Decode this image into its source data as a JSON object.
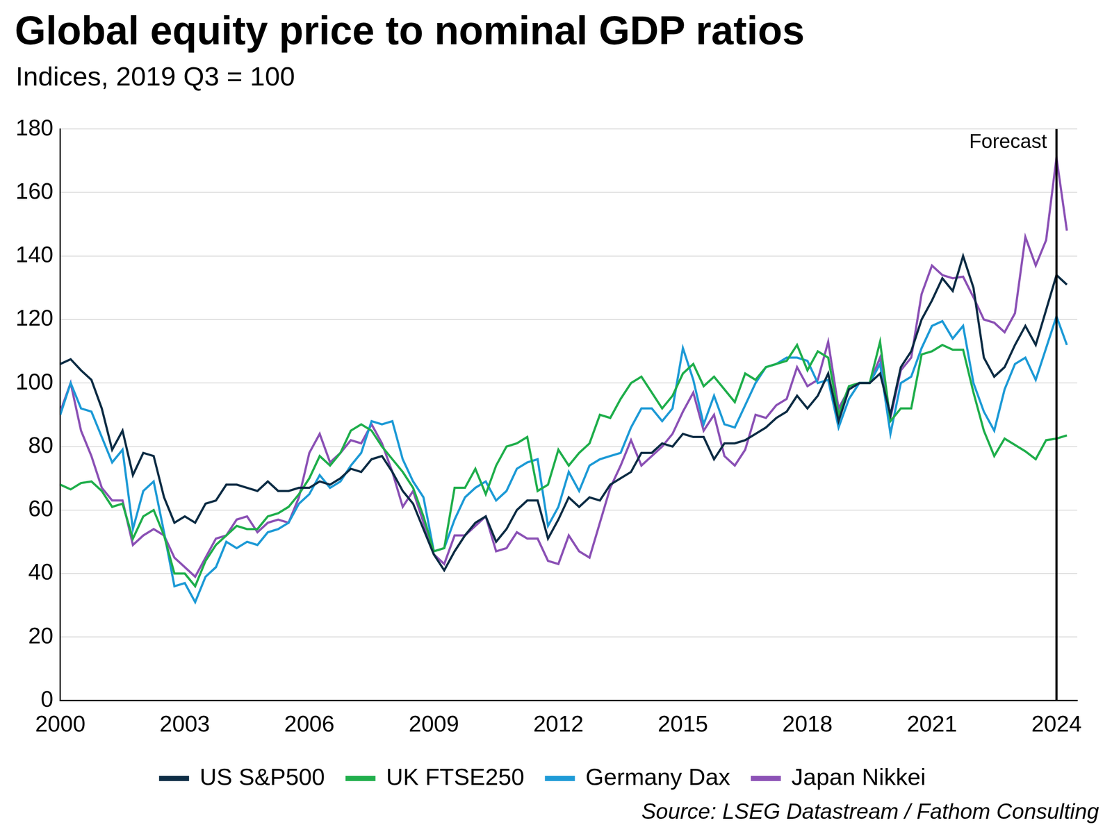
{
  "chart_data": {
    "type": "line",
    "title": "Global equity price to nominal GDP ratios",
    "subtitle": "Indices, 2019 Q3 = 100",
    "source": "Source: LSEG Datastream / Fathom Consulting",
    "annotations": [
      {
        "text": "Forecast",
        "x": 2024
      }
    ],
    "x": [
      2000,
      2000.25,
      2000.5,
      2000.75,
      2001,
      2001.25,
      2001.5,
      2001.75,
      2002,
      2002.25,
      2002.5,
      2002.75,
      2003,
      2003.25,
      2003.5,
      2003.75,
      2004,
      2004.25,
      2004.5,
      2004.75,
      2005,
      2005.25,
      2005.5,
      2005.75,
      2006,
      2006.25,
      2006.5,
      2006.75,
      2007,
      2007.25,
      2007.5,
      2007.75,
      2008,
      2008.25,
      2008.5,
      2008.75,
      2009,
      2009.25,
      2009.5,
      2009.75,
      2010,
      2010.25,
      2010.5,
      2010.75,
      2011,
      2011.25,
      2011.5,
      2011.75,
      2012,
      2012.25,
      2012.5,
      2012.75,
      2013,
      2013.25,
      2013.5,
      2013.75,
      2014,
      2014.25,
      2014.5,
      2014.75,
      2015,
      2015.25,
      2015.5,
      2015.75,
      2016,
      2016.25,
      2016.5,
      2016.75,
      2017,
      2017.25,
      2017.5,
      2017.75,
      2018,
      2018.25,
      2018.5,
      2018.75,
      2019,
      2019.25,
      2019.5,
      2019.75,
      2020,
      2020.25,
      2020.5,
      2020.75,
      2021,
      2021.25,
      2021.5,
      2021.75,
      2022,
      2022.25,
      2022.5,
      2022.75,
      2023,
      2023.25,
      2023.5,
      2023.75,
      2024,
      2024.25
    ],
    "series": [
      {
        "name": "US S&P500",
        "color": "#0c2c44",
        "values": [
          106,
          107.5,
          104,
          101,
          92,
          79,
          85,
          71,
          78,
          77,
          64,
          56,
          58,
          56,
          62,
          63,
          68,
          68,
          67,
          66,
          69,
          66,
          66,
          67,
          67,
          69,
          68,
          70,
          73,
          72,
          76,
          77,
          72,
          66,
          62,
          54,
          46,
          41,
          47,
          52,
          56,
          58,
          50,
          54,
          60,
          63,
          63,
          51,
          57,
          64,
          61,
          64,
          63,
          68,
          70,
          72,
          78,
          78,
          81,
          80,
          84,
          83,
          83,
          76,
          81,
          81,
          82,
          84,
          86,
          89,
          91,
          96,
          92,
          96,
          103,
          88,
          98,
          100,
          100,
          103,
          90,
          105,
          110,
          120,
          126,
          133,
          129,
          140,
          130,
          108,
          102,
          105,
          112,
          118,
          112,
          123,
          134,
          131
        ]
      },
      {
        "name": "UK FTSE250",
        "color": "#1fae4b",
        "values": [
          68,
          66.5,
          68.5,
          69,
          66,
          61,
          62,
          51,
          58,
          60,
          52,
          40,
          40,
          36,
          44,
          49,
          52,
          55,
          54,
          54,
          58,
          59,
          61,
          65,
          70,
          77,
          74,
          78,
          85,
          87,
          85,
          80,
          76,
          72,
          67,
          58,
          47,
          48,
          67,
          67,
          73,
          65,
          74,
          80,
          81,
          83,
          66,
          68,
          79,
          74,
          78,
          81,
          90,
          89,
          95,
          100,
          102,
          97,
          92,
          96,
          103,
          106,
          99,
          102,
          98,
          94,
          103,
          101,
          105,
          106,
          107,
          112,
          104,
          110,
          108,
          90,
          99,
          100,
          100,
          113,
          88,
          92,
          92,
          109,
          110,
          112,
          110.5,
          110.5,
          97,
          85,
          77,
          82.5,
          80.5,
          78.5,
          76,
          82,
          82.5,
          83.5
        ]
      },
      {
        "name": "Germany Dax",
        "color": "#1d9ad6",
        "values": [
          90,
          100,
          92,
          91,
          83,
          75,
          79,
          54,
          66,
          69,
          53,
          36,
          37,
          31,
          39,
          42,
          50,
          48,
          50,
          49,
          53,
          54,
          56,
          62,
          65,
          71,
          67,
          69,
          74,
          78,
          88,
          87,
          88,
          76,
          69,
          64,
          47,
          48,
          57,
          64,
          67,
          69,
          63,
          66,
          73,
          75,
          76,
          55,
          61,
          72,
          66,
          74,
          76,
          77,
          78,
          86,
          92,
          92,
          88,
          92,
          111,
          101,
          87,
          96,
          87,
          86,
          93,
          100,
          105,
          106,
          108,
          108,
          107,
          100,
          101,
          86,
          95,
          100,
          100,
          106,
          84,
          100,
          102,
          111,
          118,
          119.5,
          114,
          118,
          100,
          91,
          85,
          98,
          106,
          108,
          101,
          111,
          121,
          112
        ]
      },
      {
        "name": "Japan Nikkei",
        "color": "#8b51b5",
        "values": [
          91,
          100,
          85,
          77,
          67,
          63,
          63,
          49,
          52,
          54,
          52,
          45,
          42,
          39,
          45,
          51,
          52,
          57,
          58,
          53,
          56,
          57,
          56,
          64,
          78,
          84,
          75,
          78,
          82,
          81,
          87,
          81,
          72,
          61,
          66,
          56,
          46,
          43,
          52,
          52,
          55,
          58,
          47,
          48,
          53,
          51,
          51,
          44,
          43,
          52,
          47,
          45,
          56,
          67,
          74,
          82,
          74,
          77,
          80,
          84,
          91,
          97,
          85,
          90,
          77,
          74,
          79,
          90,
          89,
          93,
          95,
          105,
          99,
          101,
          113,
          92,
          98,
          100,
          100,
          108,
          89,
          104,
          108,
          128,
          137,
          134,
          133,
          133.5,
          127,
          120,
          119,
          116,
          122,
          146,
          137,
          145,
          171,
          148
        ]
      }
    ],
    "xlim": [
      2000,
      2024.5
    ],
    "xticks": [
      2000,
      2003,
      2006,
      2009,
      2012,
      2015,
      2018,
      2021,
      2024
    ],
    "ylim": [
      0,
      180
    ],
    "yticks": [
      0,
      20,
      40,
      60,
      80,
      100,
      120,
      140,
      160,
      180
    ],
    "grid": "y",
    "legend": "bottom"
  }
}
